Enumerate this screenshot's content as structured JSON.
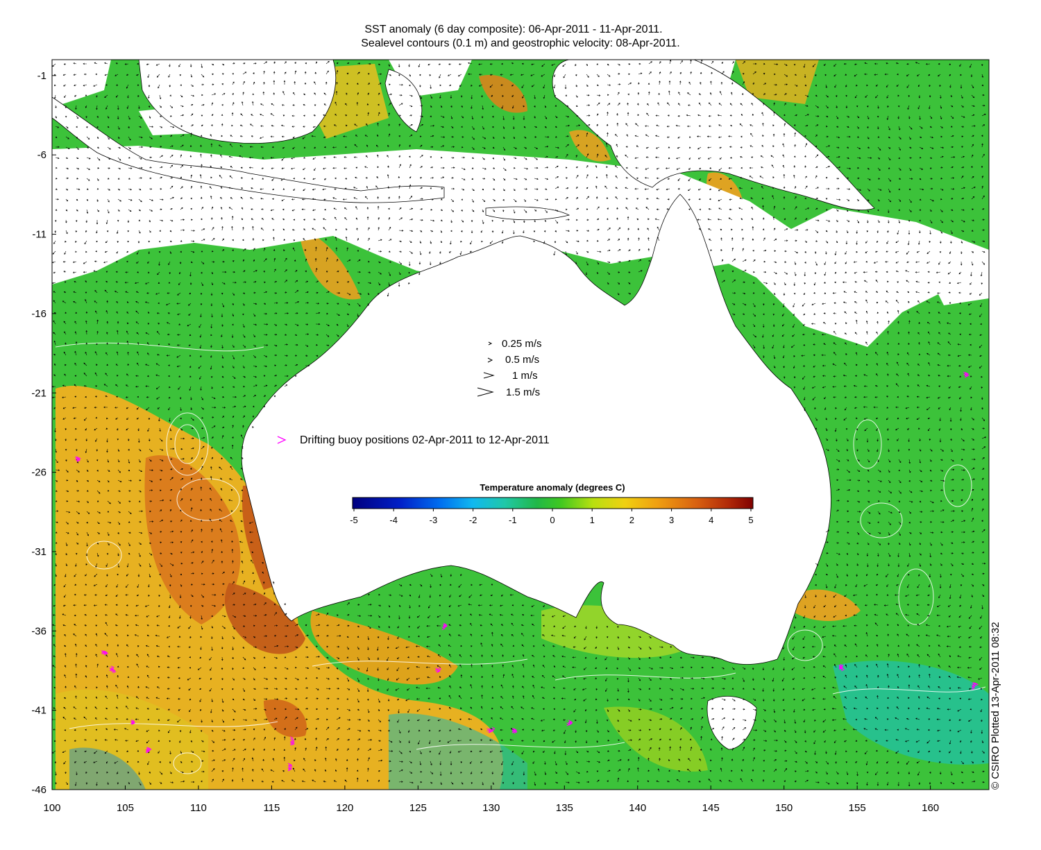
{
  "title": {
    "line1": "SST anomaly (6 day composite): 06-Apr-2011 - 11-Apr-2011.",
    "line2": "Sealevel contours (0.1 m) and geostrophic velocity: 08-Apr-2011."
  },
  "credit": "© CSIRO Plotted 13-Apr-2011 08:32",
  "axes": {
    "lon_range": [
      100,
      164
    ],
    "lat_range": [
      -46,
      0
    ],
    "x_ticks": [
      "100",
      "105",
      "110",
      "115",
      "120",
      "125",
      "130",
      "135",
      "140",
      "145",
      "150",
      "155",
      "160"
    ],
    "y_ticks": [
      "-1",
      "-6",
      "-11",
      "-16",
      "-21",
      "-26",
      "-31",
      "-36",
      "-41",
      "-46"
    ]
  },
  "velocity_legend": [
    {
      "speed": "0.25 m/s"
    },
    {
      "speed": "0.5 m/s"
    },
    {
      "speed": "1 m/s"
    },
    {
      "speed": "1.5 m/s"
    }
  ],
  "buoy_legend": {
    "label": "Drifting buoy positions 02-Apr-2011 to 12-Apr-2011",
    "color": "#ff00ff"
  },
  "colorbar": {
    "title": "Temperature anomaly (degrees C)",
    "ticks": [
      "-5",
      "-4",
      "-3",
      "-2",
      "-1",
      "0",
      "1",
      "2",
      "3",
      "4",
      "5"
    ],
    "range": [
      -5,
      5
    ]
  },
  "colors": {
    "land": "#ffffff",
    "cloud": "#ffffff",
    "ocean_base": "#3cc23a",
    "warm": "#f0b020",
    "hot": "#d8741c",
    "cool": "#20c0a8"
  }
}
